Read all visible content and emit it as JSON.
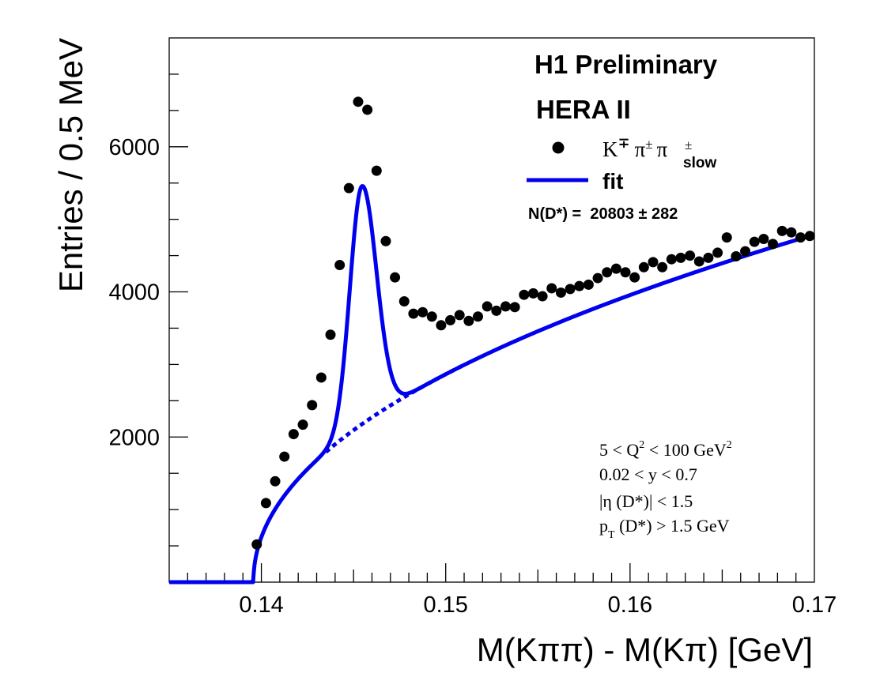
{
  "chart_data": {
    "type": "scatter",
    "title": "",
    "xlabel": "M(Kππ) - M(Kπ) [GeV]",
    "ylabel": "Entries / 0.5 MeV",
    "xlim": [
      0.135,
      0.17
    ],
    "ylim": [
      0,
      7500
    ],
    "x_ticks": [
      0.14,
      0.15,
      0.16,
      0.17
    ],
    "x_tick_labels": [
      "0.14",
      "0.15",
      "0.16",
      "0.17"
    ],
    "y_ticks": [
      2000,
      4000,
      6000
    ],
    "y_tick_labels": [
      "2000",
      "4000",
      "6000"
    ],
    "y_minor_step": 500,
    "x_minor_step": 0.001,
    "grid": false,
    "legend_position": "top-right",
    "header": {
      "line1": "H1 Preliminary",
      "line2": "HERA II"
    },
    "legend": {
      "data_label_k": "K",
      "data_label_k_sup": "∓",
      "data_label_pi1": "π",
      "data_label_pi1_sup": "±",
      "data_label_pi2": "π",
      "data_label_pi2_sup": "±",
      "data_label_pi2_sub": "slow",
      "fit_label": "fit",
      "yield_text": "N(D*) =  20803 ± 282"
    },
    "cuts": {
      "c1_pre": "5 < Q",
      "c1_sup": "2",
      "c1_post": " < 100 GeV",
      "c1_sup2": "2",
      "c2": "0.02 < y < 0.7",
      "c3": "|η (D*)| < 1.5",
      "c4_p": "p",
      "c4_sub": "T",
      "c4_rest": " (D*) > 1.5 GeV"
    },
    "series": [
      {
        "name": "K∓ π± π±slow",
        "kind": "points",
        "color": "#000000",
        "x": [
          0.13975,
          0.14025,
          0.14075,
          0.14125,
          0.14175,
          0.14225,
          0.14275,
          0.14325,
          0.14375,
          0.14425,
          0.14475,
          0.14525,
          0.14575,
          0.14625,
          0.14675,
          0.14725,
          0.14775,
          0.14825,
          0.14875,
          0.14925,
          0.14975,
          0.15025,
          0.15075,
          0.15125,
          0.15175,
          0.15225,
          0.15275,
          0.15325,
          0.15375,
          0.15425,
          0.15475,
          0.15525,
          0.15575,
          0.15625,
          0.15675,
          0.15725,
          0.15775,
          0.15825,
          0.15875,
          0.15925,
          0.15975,
          0.16025,
          0.16075,
          0.16125,
          0.16175,
          0.16225,
          0.16275,
          0.16325,
          0.16375,
          0.16425,
          0.16475,
          0.16525,
          0.16575,
          0.16625,
          0.16675,
          0.16725,
          0.16775,
          0.16825,
          0.16875,
          0.16925,
          0.16975
        ],
        "y": [
          520,
          1090,
          1390,
          1730,
          2040,
          2170,
          2440,
          2820,
          3410,
          4370,
          5430,
          6620,
          6510,
          5670,
          4700,
          4200,
          3870,
          3700,
          3720,
          3660,
          3540,
          3610,
          3680,
          3600,
          3660,
          3800,
          3740,
          3800,
          3790,
          3960,
          3980,
          3940,
          4050,
          3990,
          4040,
          4080,
          4100,
          4190,
          4270,
          4320,
          4270,
          4200,
          4340,
          4410,
          4340,
          4450,
          4470,
          4500,
          4420,
          4470,
          4540,
          4750,
          4490,
          4560,
          4690,
          4730,
          4660,
          4840,
          4820,
          4750,
          4770
        ]
      },
      {
        "name": "fit",
        "kind": "curve",
        "color": "#0000ee",
        "model": {
          "threshold": 0.13957,
          "bg_norm": 4790,
          "bg_power": 0.48,
          "sig_mean": 0.14545,
          "sig_sigma_left": 0.00065,
          "sig_sigma_right": 0.00079,
          "sig_amp": 3280
        }
      },
      {
        "name": "background",
        "kind": "curve-dotted",
        "color": "#0000ee",
        "x_from": 0.1435,
        "x_to": 0.151
      }
    ]
  }
}
